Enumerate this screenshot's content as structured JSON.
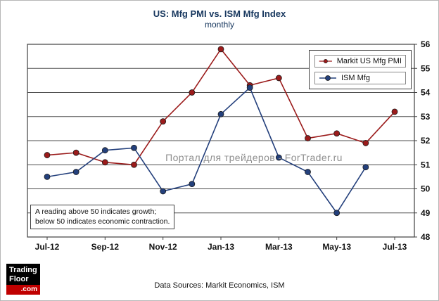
{
  "title": "US: Mfg PMI vs. ISM Mfg Index",
  "subtitle": "monthly",
  "watermark": "Портал для трейдеров - ForTrader.ru",
  "annotation": {
    "line1": "A reading above 50 indicates growth;",
    "line2": "below 50 indicates economic contraction."
  },
  "footer": "Data Sources:  Markit Economics,  ISM",
  "logo": {
    "line1": "Trading",
    "line2": "Floor",
    "line3": ".com"
  },
  "chart_data": {
    "type": "line",
    "x": [
      "Jul-12",
      "Aug-12",
      "Sep-12",
      "Oct-12",
      "Nov-12",
      "Dec-12",
      "Jan-13",
      "Feb-13",
      "Mar-13",
      "Apr-13",
      "May-13",
      "Jun-13",
      "Jul-13"
    ],
    "x_tick_labels": [
      "Jul-12",
      "Sep-12",
      "Nov-12",
      "Jan-13",
      "Mar-13",
      "May-13",
      "Jul-13"
    ],
    "ylim": [
      48,
      56
    ],
    "yticks": [
      48,
      49,
      50,
      51,
      52,
      53,
      54,
      55,
      56
    ],
    "grid": true,
    "legend_position": "top-right",
    "series": [
      {
        "name": "Markit US Mfg PMI",
        "color": "#9b1b1b",
        "values": [
          51.4,
          51.5,
          51.1,
          51.0,
          52.8,
          54.0,
          55.8,
          54.3,
          54.6,
          52.1,
          52.3,
          51.9,
          53.2
        ]
      },
      {
        "name": "ISM Mfg",
        "color": "#24407c",
        "values": [
          50.5,
          50.7,
          51.6,
          51.7,
          49.9,
          50.2,
          53.1,
          54.2,
          51.3,
          50.7,
          49.0,
          50.9,
          null
        ]
      }
    ]
  }
}
